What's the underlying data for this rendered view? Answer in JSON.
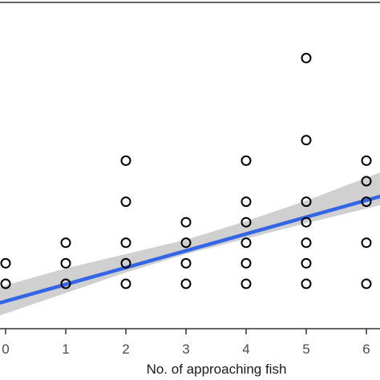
{
  "chart_data": {
    "type": "scatter",
    "xlabel": "No. of approaching fish",
    "ylabel": "",
    "x_ticks": [
      "0",
      "1",
      "2",
      "3",
      "4",
      "5",
      "6"
    ],
    "xlim": [
      -0.1,
      6.25
    ],
    "ylim": [
      -1.15,
      12.7
    ],
    "grid": false,
    "points": [
      {
        "x": 0,
        "y": 0
      },
      {
        "x": 0,
        "y": 1
      },
      {
        "x": 1,
        "y": 0
      },
      {
        "x": 1,
        "y": 1
      },
      {
        "x": 1,
        "y": 2
      },
      {
        "x": 2,
        "y": 0
      },
      {
        "x": 2,
        "y": 1
      },
      {
        "x": 2,
        "y": 2
      },
      {
        "x": 2,
        "y": 4
      },
      {
        "x": 2,
        "y": 6
      },
      {
        "x": 3,
        "y": 0
      },
      {
        "x": 3,
        "y": 1
      },
      {
        "x": 3,
        "y": 2
      },
      {
        "x": 3,
        "y": 3
      },
      {
        "x": 4,
        "y": 0
      },
      {
        "x": 4,
        "y": 1
      },
      {
        "x": 4,
        "y": 2
      },
      {
        "x": 4,
        "y": 3
      },
      {
        "x": 4,
        "y": 4
      },
      {
        "x": 4,
        "y": 6
      },
      {
        "x": 5,
        "y": 0
      },
      {
        "x": 5,
        "y": 1
      },
      {
        "x": 5,
        "y": 2
      },
      {
        "x": 5,
        "y": 3
      },
      {
        "x": 5,
        "y": 4
      },
      {
        "x": 5,
        "y": 7
      },
      {
        "x": 5,
        "y": 11
      },
      {
        "x": 6,
        "y": 0
      },
      {
        "x": 6,
        "y": 2
      },
      {
        "x": 6,
        "y": 4
      },
      {
        "x": 6,
        "y": 5
      },
      {
        "x": 6,
        "y": 6
      }
    ],
    "fit_line": {
      "intercept": -0.85,
      "slope": 0.82,
      "color": "#3366e6"
    },
    "confidence_band": {
      "x": [
        -0.1,
        1,
        2,
        3,
        4,
        5,
        6.25
      ],
      "lower": [
        -1.55,
        -0.45,
        0.55,
        1.45,
        2.2,
        2.95,
        3.85
      ],
      "upper": [
        -0.15,
        0.75,
        1.45,
        2.15,
        3.05,
        4.05,
        5.45
      ],
      "color": "#c8c8c8"
    }
  }
}
